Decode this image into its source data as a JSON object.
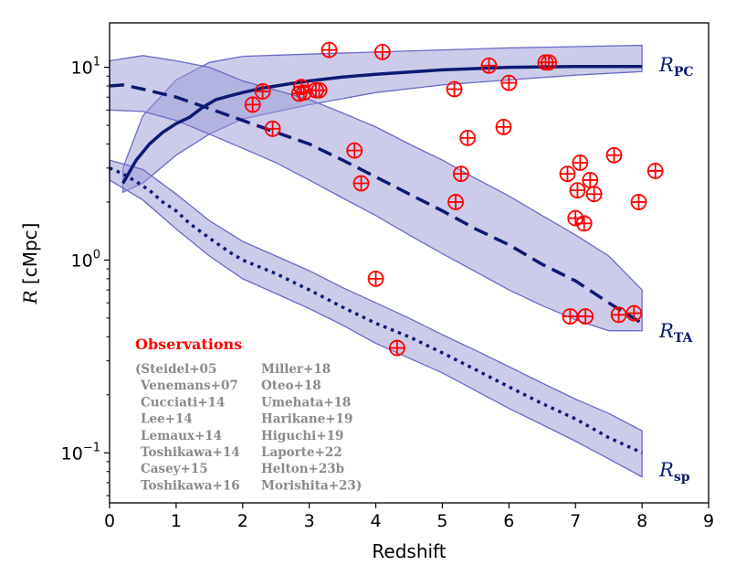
{
  "chart_data": {
    "type": "line",
    "xlabel": "Redshift",
    "ylabel_var": "R",
    "ylabel_unit": " [cMpc]",
    "xlim": [
      0,
      9
    ],
    "ylim": [
      0.055,
      17
    ],
    "yscale": "log",
    "grid": false,
    "x_ticks": [
      "0",
      "1",
      "2",
      "3",
      "4",
      "5",
      "6",
      "7",
      "8",
      "9"
    ],
    "y_ticks": [
      {
        "value": 0.1,
        "base": "10",
        "exp": "−1"
      },
      {
        "value": 1,
        "base": "10",
        "exp": "0"
      },
      {
        "value": 10,
        "base": "10",
        "exp": "1"
      }
    ],
    "series": [
      {
        "name_main": "R",
        "name_sub": "PC",
        "style": "solid",
        "points": [
          [
            0.2,
            2.5
          ],
          [
            0.4,
            3.3
          ],
          [
            0.6,
            4.0
          ],
          [
            0.8,
            4.6
          ],
          [
            1.0,
            5.1
          ],
          [
            1.2,
            5.5
          ],
          [
            1.4,
            6.2
          ],
          [
            1.6,
            6.8
          ],
          [
            1.8,
            7.1
          ],
          [
            2.0,
            7.4
          ],
          [
            2.3,
            7.8
          ],
          [
            2.6,
            8.1
          ],
          [
            2.8,
            8.3
          ],
          [
            3.0,
            8.5
          ],
          [
            3.5,
            8.9
          ],
          [
            4.0,
            9.2
          ],
          [
            5.0,
            9.7
          ],
          [
            6.0,
            10.0
          ],
          [
            7.0,
            10.1
          ],
          [
            8.0,
            10.1
          ]
        ],
        "band_upper": [
          [
            0.2,
            3.0
          ],
          [
            0.5,
            5.6
          ],
          [
            1.0,
            8.6
          ],
          [
            1.5,
            10.6
          ],
          [
            2.0,
            11.4
          ],
          [
            3.0,
            11.7
          ],
          [
            4.0,
            12.0
          ],
          [
            5.0,
            12.3
          ],
          [
            6.0,
            12.6
          ],
          [
            7.0,
            12.8
          ],
          [
            8.0,
            13.0
          ]
        ],
        "band_lower": [
          [
            0.2,
            2.25
          ],
          [
            0.5,
            2.5
          ],
          [
            1.0,
            3.5
          ],
          [
            1.5,
            4.5
          ],
          [
            2.0,
            5.4
          ],
          [
            3.0,
            6.4
          ],
          [
            4.0,
            7.4
          ],
          [
            5.0,
            8.1
          ],
          [
            6.0,
            8.6
          ],
          [
            7.0,
            9.1
          ],
          [
            8.0,
            9.5
          ]
        ]
      },
      {
        "name_main": "R",
        "name_sub": "TA",
        "style": "dashed",
        "points": [
          [
            0.0,
            8.0
          ],
          [
            0.2,
            8.1
          ],
          [
            0.5,
            7.7
          ],
          [
            1.0,
            7.0
          ],
          [
            1.5,
            6.1
          ],
          [
            2.0,
            5.3
          ],
          [
            2.5,
            4.6
          ],
          [
            3.0,
            4.0
          ],
          [
            3.5,
            3.3
          ],
          [
            4.0,
            2.7
          ],
          [
            4.5,
            2.2
          ],
          [
            5.0,
            1.8
          ],
          [
            5.5,
            1.45
          ],
          [
            6.0,
            1.2
          ],
          [
            6.5,
            0.95
          ],
          [
            7.0,
            0.78
          ],
          [
            7.5,
            0.6
          ],
          [
            8.0,
            0.47
          ]
        ],
        "band_upper": [
          [
            0.0,
            10.8
          ],
          [
            0.5,
            11.5
          ],
          [
            1.0,
            10.8
          ],
          [
            1.5,
            10.0
          ],
          [
            2.0,
            8.5
          ],
          [
            2.5,
            7.6
          ],
          [
            3.0,
            6.8
          ],
          [
            3.5,
            5.8
          ],
          [
            4.0,
            4.9
          ],
          [
            4.5,
            4.0
          ],
          [
            5.0,
            3.3
          ],
          [
            5.5,
            2.65
          ],
          [
            6.0,
            2.15
          ],
          [
            6.5,
            1.7
          ],
          [
            7.0,
            1.35
          ],
          [
            7.5,
            1.05
          ],
          [
            8.0,
            0.7
          ]
        ],
        "band_lower": [
          [
            0.0,
            6.0
          ],
          [
            0.5,
            5.9
          ],
          [
            1.0,
            5.3
          ],
          [
            1.5,
            4.5
          ],
          [
            2.0,
            3.8
          ],
          [
            2.5,
            3.2
          ],
          [
            3.0,
            2.6
          ],
          [
            3.5,
            2.1
          ],
          [
            4.0,
            1.7
          ],
          [
            4.5,
            1.35
          ],
          [
            5.0,
            1.08
          ],
          [
            5.5,
            0.87
          ],
          [
            6.0,
            0.7
          ],
          [
            6.5,
            0.58
          ],
          [
            7.0,
            0.49
          ],
          [
            7.5,
            0.43
          ],
          [
            8.0,
            0.43
          ]
        ]
      },
      {
        "name_main": "R",
        "name_sub": "sp",
        "style": "dotted",
        "points": [
          [
            0.0,
            3.0
          ],
          [
            0.2,
            2.8
          ],
          [
            0.4,
            2.55
          ],
          [
            0.6,
            2.3
          ],
          [
            0.8,
            2.0
          ],
          [
            1.0,
            1.8
          ],
          [
            1.2,
            1.55
          ],
          [
            1.5,
            1.3
          ],
          [
            1.8,
            1.1
          ],
          [
            2.0,
            1.0
          ],
          [
            2.5,
            0.85
          ],
          [
            3.0,
            0.7
          ],
          [
            3.5,
            0.57
          ],
          [
            4.0,
            0.47
          ],
          [
            4.5,
            0.4
          ],
          [
            5.0,
            0.33
          ],
          [
            5.5,
            0.27
          ],
          [
            6.0,
            0.22
          ],
          [
            6.5,
            0.18
          ],
          [
            7.0,
            0.15
          ],
          [
            7.5,
            0.12
          ],
          [
            8.0,
            0.1
          ]
        ],
        "band_upper": [
          [
            0.0,
            3.3
          ],
          [
            0.5,
            2.95
          ],
          [
            1.0,
            2.2
          ],
          [
            1.5,
            1.6
          ],
          [
            2.0,
            1.25
          ],
          [
            2.5,
            1.05
          ],
          [
            3.0,
            0.88
          ],
          [
            3.5,
            0.72
          ],
          [
            4.0,
            0.6
          ],
          [
            4.5,
            0.5
          ],
          [
            5.0,
            0.41
          ],
          [
            5.5,
            0.34
          ],
          [
            6.0,
            0.28
          ],
          [
            6.5,
            0.23
          ],
          [
            7.0,
            0.19
          ],
          [
            7.5,
            0.16
          ],
          [
            8.0,
            0.13
          ]
        ],
        "band_lower": [
          [
            0.0,
            2.6
          ],
          [
            0.5,
            2.05
          ],
          [
            1.0,
            1.45
          ],
          [
            1.5,
            1.05
          ],
          [
            2.0,
            0.8
          ],
          [
            2.5,
            0.67
          ],
          [
            3.0,
            0.56
          ],
          [
            3.5,
            0.46
          ],
          [
            4.0,
            0.37
          ],
          [
            4.5,
            0.31
          ],
          [
            5.0,
            0.26
          ],
          [
            5.5,
            0.21
          ],
          [
            6.0,
            0.17
          ],
          [
            6.5,
            0.14
          ],
          [
            7.0,
            0.115
          ],
          [
            7.5,
            0.093
          ],
          [
            8.0,
            0.075
          ]
        ]
      }
    ],
    "observations": [
      [
        2.15,
        6.4
      ],
      [
        2.3,
        7.5
      ],
      [
        2.45,
        4.8
      ],
      [
        2.85,
        7.3
      ],
      [
        2.88,
        7.9
      ],
      [
        2.92,
        7.4
      ],
      [
        3.1,
        7.6
      ],
      [
        3.15,
        7.6
      ],
      [
        3.3,
        12.3
      ],
      [
        3.68,
        3.7
      ],
      [
        3.78,
        2.5
      ],
      [
        4.0,
        0.8
      ],
      [
        4.1,
        12.0
      ],
      [
        4.32,
        0.35
      ],
      [
        5.18,
        7.7
      ],
      [
        5.2,
        2.0
      ],
      [
        5.28,
        2.8
      ],
      [
        5.38,
        4.3
      ],
      [
        5.7,
        10.2
      ],
      [
        5.92,
        4.9
      ],
      [
        6.0,
        8.3
      ],
      [
        6.55,
        10.6
      ],
      [
        6.6,
        10.6
      ],
      [
        6.88,
        2.8
      ],
      [
        6.92,
        0.51
      ],
      [
        7.0,
        1.65
      ],
      [
        7.03,
        2.3
      ],
      [
        7.07,
        3.2
      ],
      [
        7.13,
        1.55
      ],
      [
        7.15,
        0.51
      ],
      [
        7.22,
        2.6
      ],
      [
        7.28,
        2.2
      ],
      [
        7.58,
        3.5
      ],
      [
        7.65,
        0.52
      ],
      [
        7.88,
        0.53
      ],
      [
        7.95,
        2.0
      ],
      [
        8.2,
        2.9
      ]
    ],
    "legend_title": "Observations",
    "legend_col1": [
      "(Steidel+05",
      "Venemans+07",
      "Cucciati+14",
      "Lee+14",
      "Lemaux+14",
      "Toshikawa+14",
      "Casey+15",
      "Toshikawa+16"
    ],
    "legend_col2": [
      "Miller+18",
      "Oteo+18",
      "Umehata+18",
      "Harikane+19",
      "Higuchi+19",
      "Laporte+22",
      "Helton+23b",
      "Morishita+23)"
    ],
    "colors": {
      "line": "#0d1a73",
      "band_fill": "#9a9ad6",
      "band_edge": "#6a6ac6",
      "marker": "#ff0000",
      "legend_text": "#8a8a8a"
    }
  }
}
